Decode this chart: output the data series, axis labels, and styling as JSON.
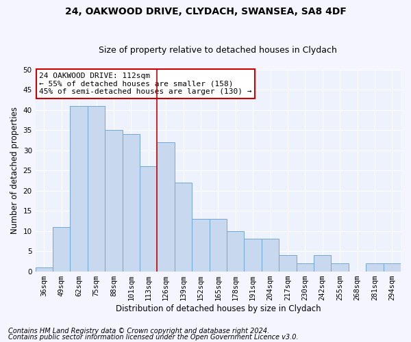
{
  "title1": "24, OAKWOOD DRIVE, CLYDACH, SWANSEA, SA8 4DF",
  "title2": "Size of property relative to detached houses in Clydach",
  "xlabel": "Distribution of detached houses by size in Clydach",
  "ylabel": "Number of detached properties",
  "categories": [
    "36sqm",
    "49sqm",
    "62sqm",
    "75sqm",
    "88sqm",
    "101sqm",
    "113sqm",
    "126sqm",
    "139sqm",
    "152sqm",
    "165sqm",
    "178sqm",
    "191sqm",
    "204sqm",
    "217sqm",
    "230sqm",
    "242sqm",
    "255sqm",
    "268sqm",
    "281sqm",
    "294sqm"
  ],
  "values": [
    1,
    11,
    41,
    41,
    35,
    34,
    26,
    32,
    22,
    13,
    13,
    10,
    8,
    8,
    4,
    2,
    4,
    2,
    0,
    2,
    2
  ],
  "bar_color": "#c8d8ee",
  "bar_edge_color": "#6fa8d8",
  "ylim": [
    0,
    50
  ],
  "yticks": [
    0,
    5,
    10,
    15,
    20,
    25,
    30,
    35,
    40,
    45,
    50
  ],
  "annotation_title": "24 OAKWOOD DRIVE: 112sqm",
  "annotation_line1": "← 55% of detached houses are smaller (158)",
  "annotation_line2": "45% of semi-detached houses are larger (130) →",
  "annotation_box_color": "#ffffff",
  "annotation_box_edge": "#cc0000",
  "vline_x": 6.5,
  "vline_color": "#cc0000",
  "footer1": "Contains HM Land Registry data © Crown copyright and database right 2024.",
  "footer2": "Contains public sector information licensed under the Open Government Licence v3.0.",
  "fig_bg_color": "#f5f5ff",
  "plot_bg_color": "#eef2fc",
  "grid_color": "#ffffff",
  "title1_fontsize": 10,
  "title2_fontsize": 9,
  "axis_label_fontsize": 8.5,
  "tick_fontsize": 7.5,
  "footer_fontsize": 7,
  "ann_fontsize": 8
}
